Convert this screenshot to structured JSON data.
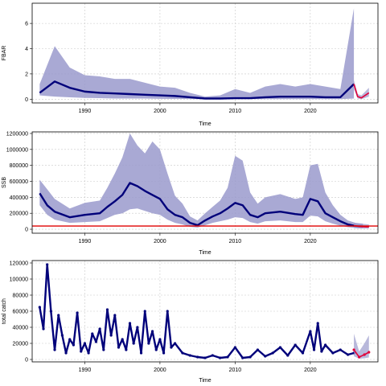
{
  "colors": {
    "band": "#9a9acc",
    "median": "#00007a",
    "forecast": "#e0003a",
    "refline": "#e00000",
    "grid": "#c8c8c8"
  },
  "chart_data": [
    {
      "type": "area",
      "ylabel": "FBAR",
      "xlabel": "Time",
      "xlim": [
        1983.0,
        2029.0
      ],
      "ylim": [
        -0.3,
        7.6
      ],
      "x_ticks": [
        1990,
        2000,
        2010,
        2020
      ],
      "x_tick_labels": [
        "1990",
        "2000",
        "2010",
        "2020"
      ],
      "y_ticks": [
        0,
        2,
        4,
        6
      ],
      "y_tick_labels": [
        "0",
        "2",
        "4",
        "6"
      ],
      "grid": true,
      "series": [
        {
          "role": "historical",
          "x": [
            1984,
            1986,
            1988,
            1990,
            1992,
            1994,
            1996,
            1998,
            2000,
            2002,
            2004,
            2006,
            2008,
            2010,
            2012,
            2014,
            2016,
            2018,
            2020,
            2022,
            2024,
            2025.8
          ],
          "median": [
            0.5,
            1.4,
            0.9,
            0.6,
            0.5,
            0.45,
            0.4,
            0.35,
            0.3,
            0.25,
            0.15,
            0.05,
            0.05,
            0.08,
            0.08,
            0.15,
            0.2,
            0.2,
            0.2,
            0.15,
            0.15,
            1.2
          ],
          "upper": [
            1.2,
            4.2,
            2.5,
            1.9,
            1.8,
            1.6,
            1.6,
            1.3,
            1.0,
            0.9,
            0.5,
            0.2,
            0.3,
            0.8,
            0.5,
            1.0,
            1.2,
            1.0,
            1.2,
            1.0,
            0.8,
            7.2
          ],
          "lower": [
            0.3,
            0.2,
            0.15,
            0.1,
            0.08,
            0.05,
            0.05,
            0.05,
            0.03,
            0.02,
            0.01,
            0.0,
            0.0,
            0.0,
            0.0,
            0.0,
            0.0,
            0.0,
            0.0,
            0.0,
            0.0,
            0.05
          ]
        },
        {
          "role": "forecast",
          "x": [
            2025.8,
            2026.3,
            2026.8,
            2027.3,
            2027.8
          ],
          "median": [
            1.2,
            0.2,
            0.1,
            0.3,
            0.5
          ],
          "upper": [
            1.5,
            0.4,
            0.3,
            0.6,
            0.9
          ],
          "lower": [
            0.8,
            0.05,
            0.0,
            0.1,
            0.2
          ]
        }
      ]
    },
    {
      "type": "area",
      "ylabel": "SSB",
      "xlabel": "Time",
      "xlim": [
        1983.0,
        2029.0
      ],
      "ylim": [
        -50000,
        1220000
      ],
      "x_ticks": [
        1990,
        2000,
        2010,
        2020
      ],
      "x_tick_labels": [
        "1990",
        "2000",
        "2010",
        "2020"
      ],
      "y_ticks": [
        0,
        200000,
        400000,
        600000,
        800000,
        1000000,
        1200000
      ],
      "y_tick_labels": [
        "0",
        "200000",
        "400000",
        "600000",
        "800000",
        "1000000",
        "1200000"
      ],
      "grid": true,
      "ref_line": 40000,
      "series": [
        {
          "role": "historical",
          "x": [
            1984,
            1985,
            1986,
            1988,
            1990,
            1992,
            1993,
            1994,
            1995,
            1996,
            1997,
            1998,
            1999,
            2000,
            2001,
            2002,
            2003,
            2004,
            2005,
            2006,
            2007,
            2008,
            2009,
            2010,
            2011,
            2012,
            2013,
            2014,
            2016,
            2018,
            2019,
            2020,
            2021,
            2022,
            2023,
            2024,
            2025,
            2026,
            2027
          ],
          "median": [
            450000,
            300000,
            220000,
            150000,
            180000,
            200000,
            280000,
            350000,
            430000,
            580000,
            540000,
            480000,
            430000,
            380000,
            250000,
            180000,
            150000,
            80000,
            50000,
            110000,
            160000,
            200000,
            260000,
            330000,
            300000,
            180000,
            150000,
            200000,
            220000,
            190000,
            180000,
            380000,
            350000,
            200000,
            150000,
            100000,
            60000,
            40000,
            35000
          ],
          "upper": [
            620000,
            500000,
            380000,
            260000,
            330000,
            360000,
            520000,
            700000,
            900000,
            1200000,
            1050000,
            950000,
            1100000,
            1000000,
            700000,
            420000,
            320000,
            160000,
            110000,
            200000,
            280000,
            360000,
            520000,
            920000,
            860000,
            460000,
            320000,
            400000,
            440000,
            380000,
            400000,
            800000,
            820000,
            460000,
            300000,
            180000,
            110000,
            80000,
            70000
          ],
          "lower": [
            300000,
            180000,
            120000,
            80000,
            90000,
            100000,
            140000,
            180000,
            200000,
            250000,
            260000,
            230000,
            200000,
            180000,
            120000,
            80000,
            60000,
            30000,
            20000,
            50000,
            80000,
            100000,
            120000,
            150000,
            140000,
            90000,
            70000,
            100000,
            110000,
            90000,
            90000,
            170000,
            160000,
            100000,
            70000,
            45000,
            25000,
            15000,
            12000
          ]
        },
        {
          "role": "forecast",
          "x": [
            2025.8,
            2026.5,
            2027.3,
            2027.8
          ],
          "median": [
            45000,
            35000,
            30000,
            28000
          ],
          "upper": [
            80000,
            70000,
            65000,
            60000
          ],
          "lower": [
            15000,
            10000,
            8000,
            8000
          ]
        }
      ]
    },
    {
      "type": "line",
      "ylabel": "total catch",
      "xlabel": "Time",
      "xlim": [
        1983.0,
        2029.0
      ],
      "ylim": [
        -3000,
        123000
      ],
      "x_ticks": [
        1990,
        2000,
        2010,
        2020
      ],
      "x_tick_labels": [
        "1990",
        "2000",
        "2010",
        "2020"
      ],
      "y_ticks": [
        0,
        20000,
        40000,
        60000,
        80000,
        100000,
        120000
      ],
      "y_tick_labels": [
        "0",
        "20000",
        "40000",
        "60000",
        "80000",
        "100000",
        "120000"
      ],
      "grid": true,
      "series": [
        {
          "role": "historical",
          "x": [
            1984,
            1984.5,
            1985,
            1985.5,
            1986,
            1986.5,
            1987,
            1987.5,
            1988,
            1988.5,
            1989,
            1989.5,
            1990,
            1990.5,
            1991,
            1991.5,
            1992,
            1992.5,
            1993,
            1993.5,
            1994,
            1994.5,
            1995,
            1995.5,
            1996,
            1996.5,
            1997,
            1997.5,
            1998,
            1998.5,
            1999,
            1999.5,
            2000,
            2000.5,
            2001,
            2001.5,
            2002,
            2003,
            2004,
            2005,
            2006,
            2007,
            2008,
            2009,
            2010,
            2011,
            2012,
            2013,
            2014,
            2015,
            2016,
            2017,
            2018,
            2019,
            2020,
            2020.5,
            2021,
            2021.5,
            2022,
            2023,
            2024,
            2025,
            2025.8
          ],
          "values": [
            65000,
            38000,
            118000,
            60000,
            12000,
            55000,
            30000,
            8000,
            25000,
            18000,
            58000,
            10000,
            20000,
            8000,
            32000,
            22000,
            38000,
            12000,
            62000,
            30000,
            55000,
            15000,
            25000,
            12000,
            45000,
            20000,
            40000,
            8000,
            60000,
            20000,
            35000,
            12000,
            25000,
            8000,
            60000,
            15000,
            20000,
            8000,
            5000,
            3000,
            2000,
            5000,
            2000,
            3000,
            15000,
            2000,
            3000,
            12000,
            4000,
            8000,
            15000,
            5000,
            18000,
            8000,
            35000,
            12000,
            45000,
            10000,
            18000,
            8000,
            12000,
            6000,
            8000
          ]
        },
        {
          "role": "forecast",
          "x": [
            2025.8,
            2026.5,
            2027.2,
            2027.8
          ],
          "values": [
            12000,
            3000,
            6000,
            9000
          ],
          "upper": [
            32000,
            10000,
            20000,
            30000
          ],
          "lower": [
            4000,
            1000,
            1500,
            2500
          ]
        }
      ]
    }
  ]
}
